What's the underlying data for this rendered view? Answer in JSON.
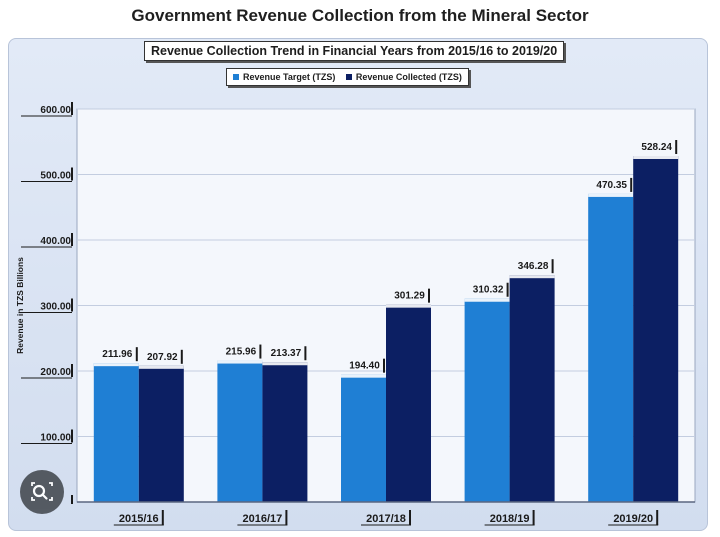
{
  "page": {
    "title": "Government Revenue Collection from the Mineral Sector"
  },
  "chart_data": {
    "type": "bar",
    "title": "Revenue Collection Trend in Financial Years from 2015/16 to 2019/20",
    "ylabel": "Revenue in TZS Billions",
    "xlabel": "",
    "categories": [
      "2015/16",
      "2016/17",
      "2017/18",
      "2018/19",
      "2019/20"
    ],
    "series": [
      {
        "name": "Revenue Target (TZS)",
        "values": [
          211.96,
          215.96,
          194.4,
          310.32,
          470.35
        ],
        "color": "#1f7fd4"
      },
      {
        "name": "Revenue Collected (TZS)",
        "values": [
          207.92,
          213.37,
          301.29,
          346.28,
          528.24
        ],
        "color": "#0c1f63"
      }
    ],
    "value_labels": [
      [
        "211.96",
        "215.96",
        "194.40",
        "310.32",
        "470.35"
      ],
      [
        "207.92",
        "213.37",
        "301.29",
        "346.28",
        "528.24"
      ]
    ],
    "ylim": [
      0,
      600
    ],
    "yticks": [
      "",
      "100.00",
      "200.00",
      "300.00",
      "400.00",
      "500.00",
      "600.00"
    ],
    "grid": true,
    "legend_position": "top"
  }
}
